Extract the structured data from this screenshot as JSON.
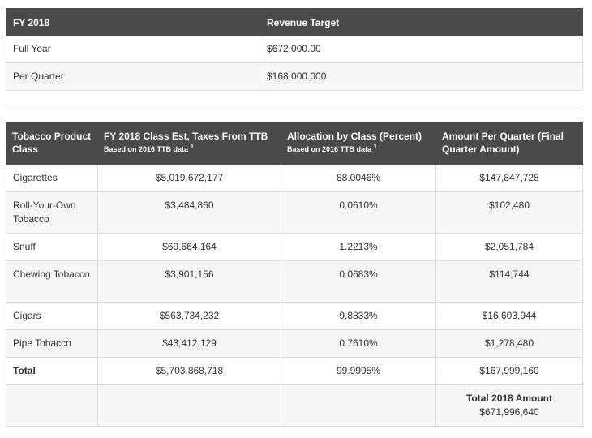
{
  "revenue_table": {
    "headers": [
      "FY 2018",
      "Revenue Target"
    ],
    "rows": [
      {
        "label": "Full Year",
        "value": "$672,000.00"
      },
      {
        "label": "Per Quarter",
        "value": "$168,000.000"
      }
    ]
  },
  "class_table": {
    "headers": {
      "class": "Tobacco Product Class",
      "taxes": "FY 2018 Class Est, Taxes From TTB",
      "taxes_sub": "Based on 2016 TTB data",
      "taxes_sup": "1",
      "allocation": "Allocation by Class (Percent)",
      "allocation_sub": "Based on 2016 TTB data",
      "allocation_sup": "1",
      "amount": "Amount Per Quarter (Final Quarter Amount)"
    },
    "rows": [
      {
        "class": "Cigarettes",
        "taxes": "$5,019,672,177",
        "allocation": "88.0046%",
        "amount": "$147,847,728"
      },
      {
        "class": "Roll-Your-Own Tobacco",
        "taxes": "$3,484,860",
        "allocation": "0.0610%",
        "amount": "$102,480"
      },
      {
        "class": "Snuff",
        "taxes": "$69,664,164",
        "allocation": "1.2213%",
        "amount": "$2,051,784"
      },
      {
        "class": "Chewing Tobacco",
        "taxes": "$3,901,156",
        "allocation": "0.0683%",
        "amount": "$114,744"
      },
      {
        "class": "Cigars",
        "taxes": "$563,734,232",
        "allocation": "9.8833%",
        "amount": "$16,603,944"
      },
      {
        "class": "Pipe Tobacco",
        "taxes": "$43,412,129",
        "allocation": "0.7610%",
        "amount": "$1,278,480"
      },
      {
        "class": "Total",
        "taxes": "$5,703,868,718",
        "allocation": "99.9995%",
        "amount": "$167,999,160"
      }
    ],
    "footer": {
      "label": "Total 2018 Amount",
      "value": "$671,996,640"
    }
  }
}
